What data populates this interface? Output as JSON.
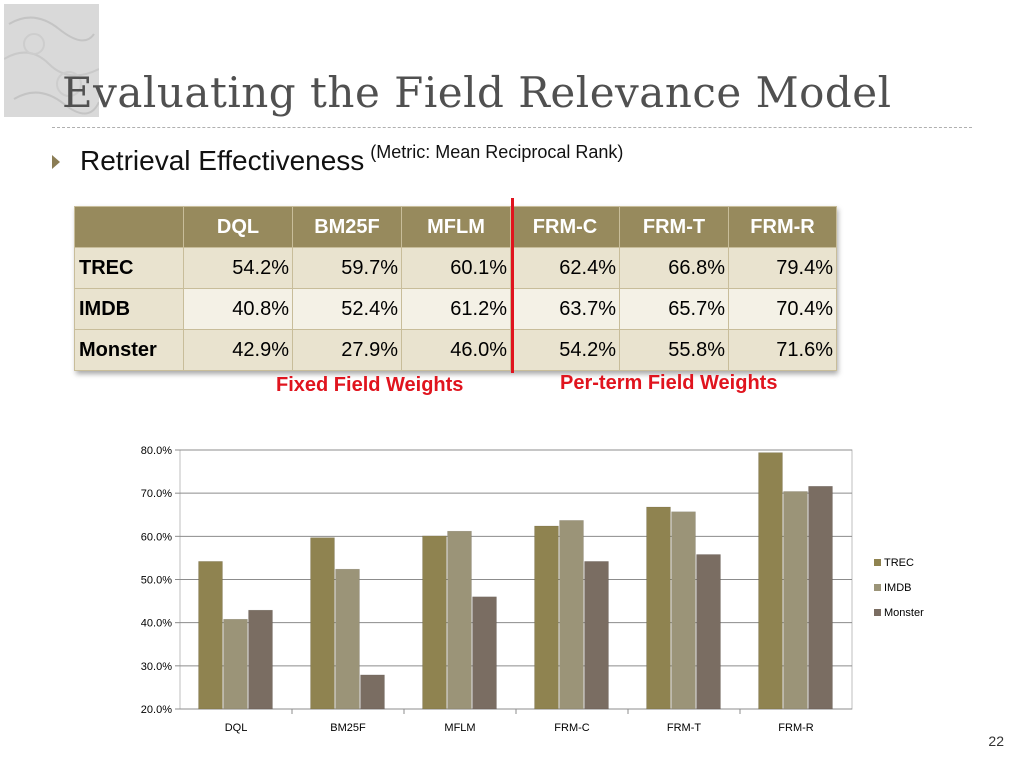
{
  "slide": {
    "title": "Evaluating the Field Relevance Model",
    "bullet": "Retrieval Effectiveness",
    "bullet_note": "(Metric: Mean Reciprocal Rank)",
    "page_number": "22"
  },
  "table": {
    "columns": [
      "",
      "DQL",
      "BM25F",
      "MFLM",
      "FRM-C",
      "FRM-T",
      "FRM-R"
    ],
    "rows": [
      {
        "label": "TREC",
        "values": [
          "54.2%",
          "59.7%",
          "60.1%",
          "62.4%",
          "66.8%",
          "79.4%"
        ]
      },
      {
        "label": "IMDB",
        "values": [
          "40.8%",
          "52.4%",
          "61.2%",
          "63.7%",
          "65.7%",
          "70.4%"
        ]
      },
      {
        "label": "Monster",
        "values": [
          "42.9%",
          "27.9%",
          "46.0%",
          "54.2%",
          "55.8%",
          "71.6%"
        ]
      }
    ],
    "group_labels": {
      "fixed": "Fixed Field Weights",
      "per_term": "Per-term Field Weights"
    }
  },
  "colors": {
    "header_bg": "#978a5d",
    "divider": "#e0141e",
    "trec": "#8f8350",
    "imdb": "#9b9478",
    "monster": "#7a6d62"
  },
  "chart_data": {
    "type": "bar",
    "categories": [
      "DQL",
      "BM25F",
      "MFLM",
      "FRM-C",
      "FRM-T",
      "FRM-R"
    ],
    "series": [
      {
        "name": "TREC",
        "values": [
          54.2,
          59.7,
          60.1,
          62.4,
          66.8,
          79.4
        ]
      },
      {
        "name": "IMDB",
        "values": [
          40.8,
          52.4,
          61.2,
          63.7,
          65.7,
          70.4
        ]
      },
      {
        "name": "Monster",
        "values": [
          42.9,
          27.9,
          46.0,
          54.2,
          55.8,
          71.6
        ]
      }
    ],
    "ylim": [
      20,
      80
    ],
    "yticks": [
      "20.0%",
      "30.0%",
      "40.0%",
      "50.0%",
      "60.0%",
      "70.0%",
      "80.0%"
    ],
    "ytick_values": [
      20,
      30,
      40,
      50,
      60,
      70,
      80
    ],
    "grid": true,
    "legend_position": "right",
    "title": "",
    "xlabel": "",
    "ylabel": ""
  }
}
